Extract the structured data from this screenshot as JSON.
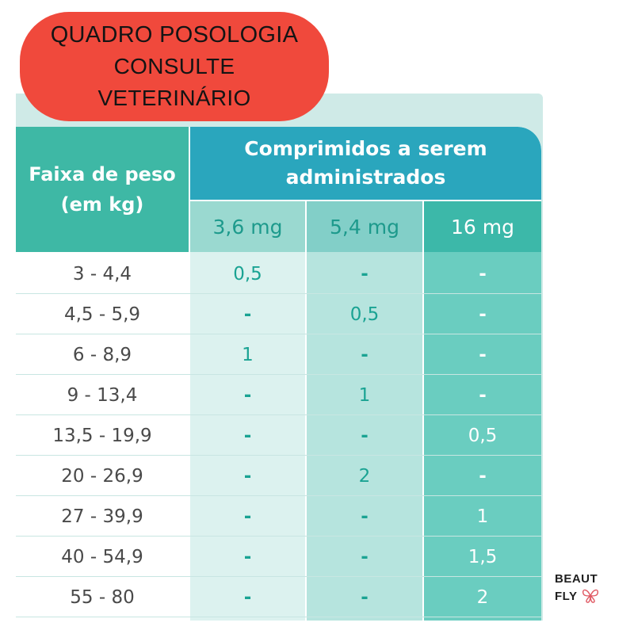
{
  "notice": {
    "line1": "QUADRO POSOLOGIA",
    "line2": "CONSULTE",
    "line3": "VETERINÁRIO",
    "color": "#f0493c"
  },
  "table": {
    "weight_header_line1": "Faixa de peso",
    "weight_header_line2": "(em kg)",
    "tablets_header_line1": "Comprimidos a serem",
    "tablets_header_line2": "administrados",
    "doses": [
      "3,6 mg",
      "5,4 mg",
      "16 mg"
    ],
    "rows": [
      {
        "weight": "3 - 4,4",
        "d1": "0,5",
        "d2": "-",
        "d3": "-"
      },
      {
        "weight": "4,5 - 5,9",
        "d1": "-",
        "d2": "0,5",
        "d3": "-"
      },
      {
        "weight": "6 - 8,9",
        "d1": "1",
        "d2": "-",
        "d3": "-"
      },
      {
        "weight": "9 - 13,4",
        "d1": "-",
        "d2": "1",
        "d3": "-"
      },
      {
        "weight": "13,5 - 19,9",
        "d1": "-",
        "d2": "-",
        "d3": "0,5"
      },
      {
        "weight": "20 - 26,9",
        "d1": "-",
        "d2": "2",
        "d3": "-"
      },
      {
        "weight": "27 - 39,9",
        "d1": "-",
        "d2": "-",
        "d3": "1"
      },
      {
        "weight": "40 - 54,9",
        "d1": "-",
        "d2": "-",
        "d3": "1,5"
      },
      {
        "weight": "55 - 80",
        "d1": "-",
        "d2": "-",
        "d3": "2"
      }
    ],
    "colors": {
      "header_teal": "#3eb8a5",
      "header_blue": "#2aa6bd",
      "col1": "#dcf2ef",
      "col2": "#b6e4de",
      "col3": "#6acdc0"
    }
  },
  "brand": {
    "line1": "BEAUT",
    "line2": "FLY",
    "icon": "butterfly-icon"
  }
}
